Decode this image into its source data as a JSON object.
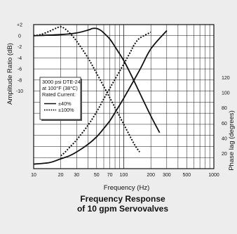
{
  "chart_data": {
    "type": "line",
    "title": "Frequency Response\nof 10 gpm Servovalves",
    "title_lines": [
      "Frequency Response",
      "of 10 gpm Servovalves"
    ],
    "xlabel": "Frequency (Hz)",
    "ylabel_left": "Amplitude Ratio (dB)",
    "ylabel_right": "Phase lag (degrees)",
    "x_scale": "log",
    "xlim": [
      10,
      1000
    ],
    "x_ticks": [
      "10",
      "20",
      "30",
      "50",
      "70",
      "100",
      "200",
      "300",
      "500",
      "1000"
    ],
    "x_tick_values": [
      10,
      20,
      30,
      50,
      70,
      100,
      200,
      300,
      500,
      1000
    ],
    "ylim_left": [
      -24,
      2
    ],
    "y_ticks_left": [
      "+2",
      "0",
      "-2",
      "-4",
      "-6",
      "-8",
      "-10"
    ],
    "y_tick_values_left": [
      2,
      0,
      -2,
      -4,
      -6,
      -8,
      -10
    ],
    "ylim_right": [
      0,
      190
    ],
    "y_ticks_right": [
      "20",
      "40",
      "60",
      "80",
      "100",
      "120"
    ],
    "y_tick_values_right": [
      20,
      40,
      60,
      80,
      100,
      120
    ],
    "grid": true,
    "legend": {
      "header": [
        "3000 psi DTE-24",
        "at 100°F (38°C)",
        "Rated Current:"
      ],
      "placement": "left",
      "entries": [
        {
          "label": "±40%",
          "style": "solid"
        },
        {
          "label": "±100%",
          "style": "dotted"
        }
      ]
    },
    "series": [
      {
        "name": "±40%",
        "quantity": "amplitude",
        "axis": "left",
        "style": "solid",
        "x": [
          10,
          20,
          30,
          40,
          45,
          50,
          55,
          60,
          70,
          80,
          100,
          120,
          150,
          200,
          250
        ],
        "y": [
          0,
          0.2,
          0.5,
          1.0,
          1.3,
          1.3,
          1.0,
          0.5,
          -0.6,
          -2.0,
          -4.5,
          -7.0,
          -10.3,
          -14.5,
          -17.5
        ]
      },
      {
        "name": "±100%",
        "quantity": "amplitude",
        "axis": "left",
        "style": "dotted",
        "x": [
          10,
          12,
          15,
          18,
          20,
          22,
          25,
          30,
          40,
          50,
          70,
          100,
          130,
          150
        ],
        "y": [
          0,
          0.2,
          0.8,
          1.4,
          1.6,
          1.3,
          0.5,
          -1.0,
          -4.0,
          -6.8,
          -11.2,
          -16.0,
          -19.5,
          -21.0
        ]
      },
      {
        "name": "±40%",
        "quantity": "phase",
        "axis": "right",
        "style": "solid",
        "x": [
          10,
          15,
          20,
          25,
          30,
          40,
          50,
          60,
          70,
          80,
          100,
          150,
          200,
          300
        ],
        "y": [
          6,
          8,
          13,
          17,
          22,
          32,
          42,
          53,
          63,
          74,
          93,
          130,
          158,
          182
        ]
      },
      {
        "name": "±100%",
        "quantity": "phase",
        "axis": "right",
        "style": "dotted",
        "x": [
          20,
          22,
          25,
          30,
          40,
          50,
          60,
          70,
          80,
          100,
          120,
          130,
          150,
          200
        ],
        "y": [
          17,
          21,
          28,
          38,
          57,
          75,
          92,
          106,
          118,
          138,
          155,
          163,
          172,
          180
        ]
      }
    ]
  }
}
